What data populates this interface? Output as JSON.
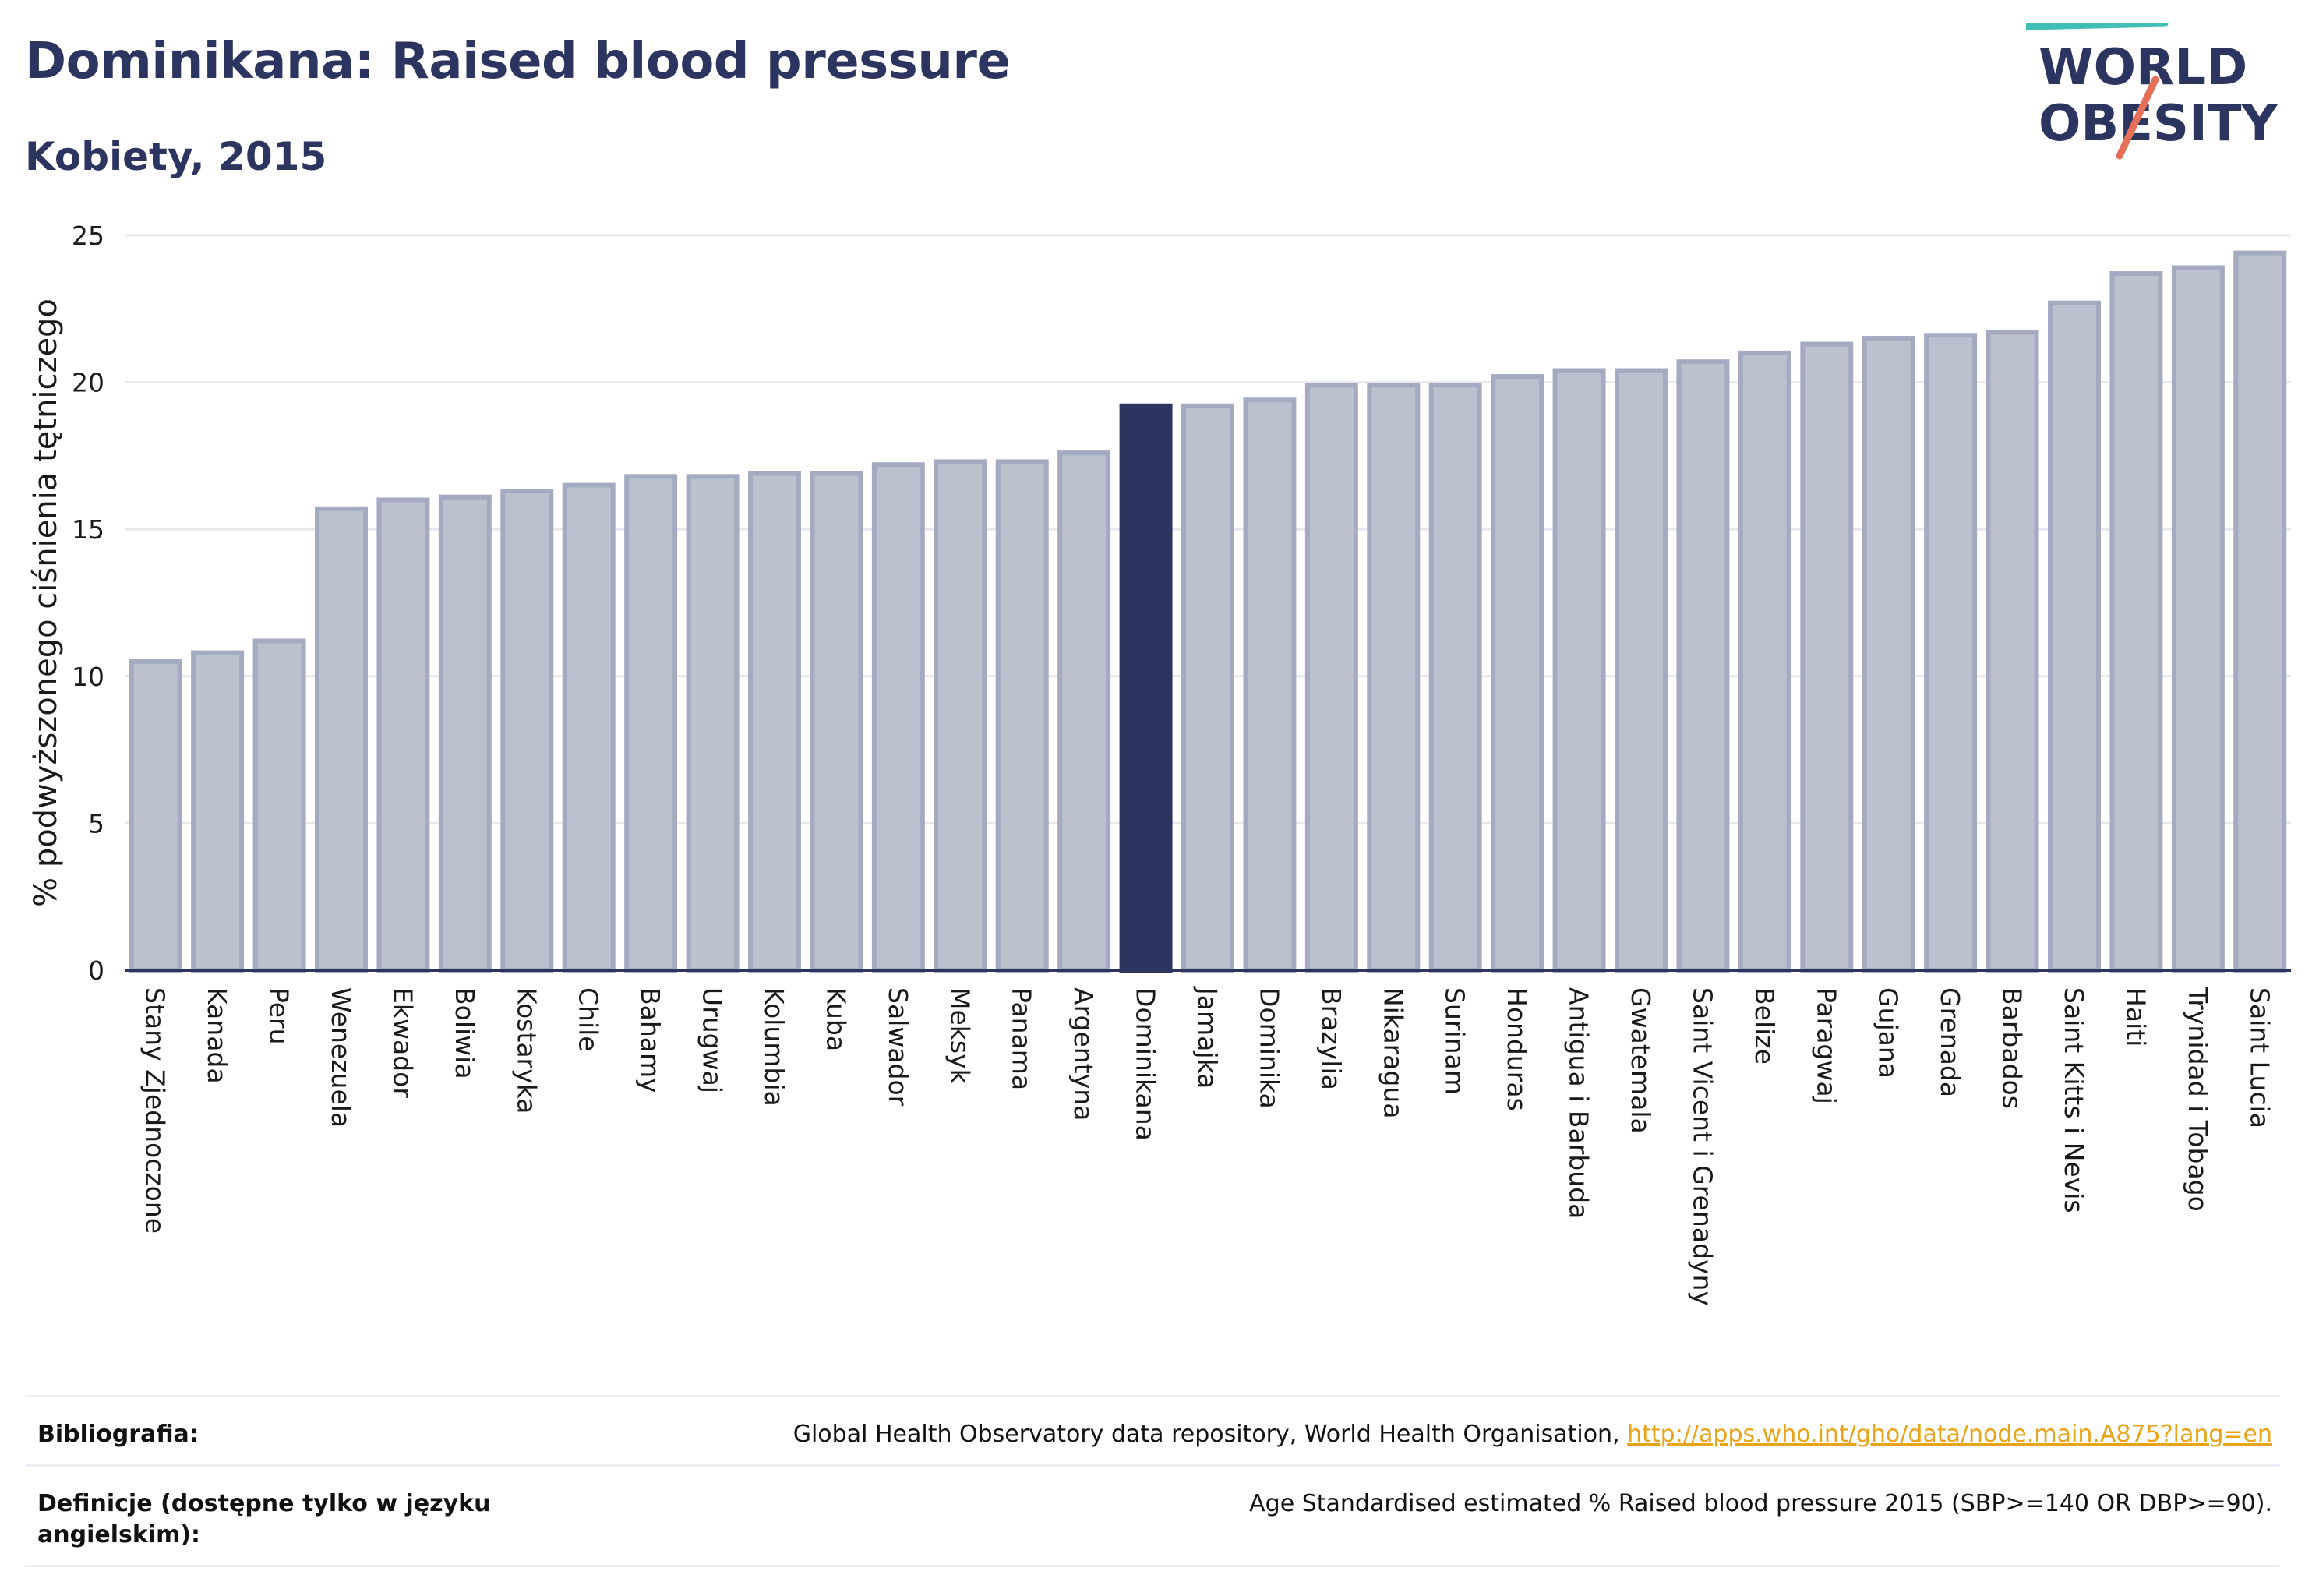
{
  "header": {
    "title": "Dominikana: Raised blood pressure",
    "subtitle": "Kobiety, 2015"
  },
  "logo": {
    "line1": "WORLD",
    "line2": "OBESITY",
    "accent_teal": "#3fbfb8",
    "accent_coral": "#e4705a"
  },
  "colors": {
    "bar_default": "#bcc1cf",
    "bar_default_border": "#a4aac0",
    "bar_highlight": "#2b3560",
    "axis": "#2b3560",
    "grid": "#e6e8ee"
  },
  "chart_data": {
    "type": "bar",
    "title": "Dominikana: Raised blood pressure",
    "subtitle": "Kobiety, 2015",
    "xlabel": "",
    "ylabel": "% podwyższonego ciśnienia tętniczego",
    "ylim": [
      0,
      25
    ],
    "yticks": [
      0,
      5,
      10,
      15,
      20,
      25
    ],
    "grid": true,
    "highlight": "Dominikana",
    "categories": [
      "Stany Zjednoczone",
      "Kanada",
      "Peru",
      "Wenezuela",
      "Ekwador",
      "Boliwia",
      "Kostaryka",
      "Chile",
      "Bahamy",
      "Urugwaj",
      "Kolumbia",
      "Kuba",
      "Salwador",
      "Meksyk",
      "Panama",
      "Argentyna",
      "Dominikana",
      "Jamajka",
      "Dominika",
      "Brazylia",
      "Nikaragua",
      "Surinam",
      "Honduras",
      "Antigua i Barbuda",
      "Gwatemala",
      "Saint Vicent i Grenadyny",
      "Belize",
      "Paragwaj",
      "Gujana",
      "Grenada",
      "Barbados",
      "Saint Kitts i Nevis",
      "Haiti",
      "Trynidad i Tobago",
      "Saint Lucia"
    ],
    "values": [
      10.5,
      10.8,
      11.2,
      15.7,
      16.0,
      16.1,
      16.3,
      16.5,
      16.8,
      16.8,
      16.9,
      16.9,
      17.2,
      17.3,
      17.3,
      17.6,
      19.2,
      19.2,
      19.4,
      19.9,
      19.9,
      19.9,
      20.2,
      20.4,
      20.4,
      20.7,
      21.0,
      21.3,
      21.5,
      21.6,
      21.7,
      22.7,
      23.7,
      23.9,
      24.4
    ]
  },
  "footer": {
    "bibliography_label": "Bibliografia:",
    "bibliography_text": "Global Health Observatory data repository, World Health Organisation, ",
    "bibliography_link": "http://apps.who.int/gho/data/node.main.A875?lang=en",
    "definitions_label": "Definicje (dostępne tylko w języku angielskim):",
    "definitions_text": "Age Standardised estimated % Raised blood pressure 2015 (SBP>=140 OR DBP>=90)."
  }
}
